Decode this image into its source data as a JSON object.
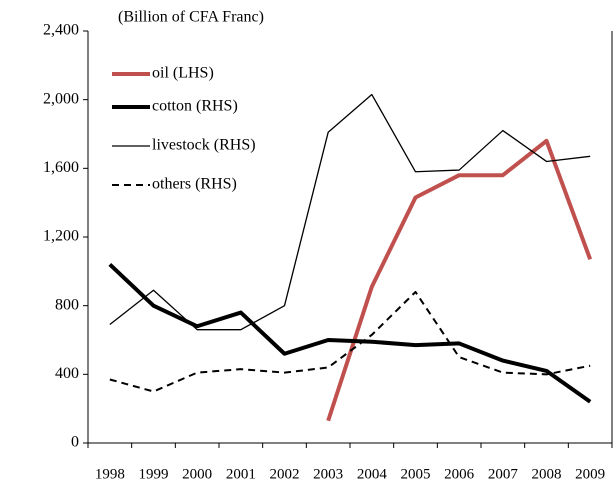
{
  "chart_data": {
    "type": "line",
    "subtitle": "(Billion of CFA Franc)",
    "categories": [
      "1998",
      "1999",
      "2000",
      "2001",
      "2002",
      "2003",
      "2004",
      "2005",
      "2006",
      "2007",
      "2008",
      "2009"
    ],
    "ylim": [
      0,
      2400
    ],
    "yticks": [
      0,
      400,
      800,
      {
        "value": 1200,
        "label": "1,200"
      },
      {
        "value": 1600,
        "label": "1,600"
      },
      {
        "value": 2000,
        "label": "2,000"
      },
      {
        "value": 2400,
        "label": "2,400"
      }
    ],
    "series": [
      {
        "name": "oil (LHS)",
        "color": "#c0504d",
        "width": 4,
        "dash": false,
        "values": [
          null,
          null,
          null,
          null,
          null,
          130,
          910,
          1430,
          1560,
          1560,
          1760,
          1070
        ]
      },
      {
        "name": "cotton (RHS)",
        "color": "#000000",
        "width": 4,
        "dash": false,
        "values": [
          1040,
          800,
          680,
          760,
          520,
          600,
          590,
          570,
          580,
          480,
          420,
          240
        ]
      },
      {
        "name": "livestock (RHS)",
        "color": "#000000",
        "width": 1.3,
        "dash": false,
        "values": [
          690,
          890,
          660,
          660,
          800,
          1810,
          2030,
          1580,
          1590,
          1820,
          1640,
          1670
        ]
      },
      {
        "name": "others (RHS)",
        "color": "#000000",
        "width": 2,
        "dash": true,
        "values": [
          370,
          300,
          410,
          430,
          410,
          440,
          630,
          880,
          500,
          410,
          400,
          450
        ]
      }
    ]
  }
}
